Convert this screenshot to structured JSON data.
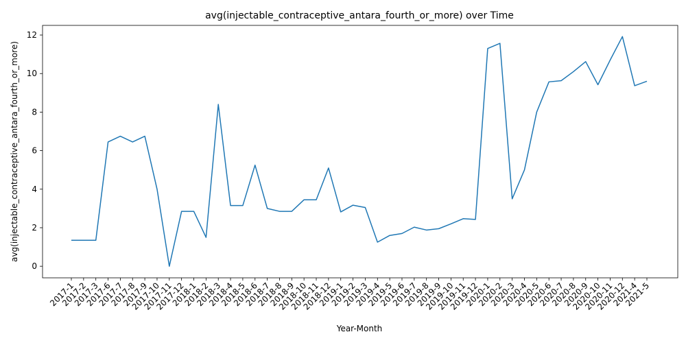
{
  "chart_data": {
    "type": "line",
    "title": "avg(injectable_contraceptive_antara_fourth_or_more) over Time",
    "xlabel": "Year-Month",
    "ylabel": "avg(injectable_contraceptive_antara_fourth_or_more)",
    "ylim": [
      -0.6,
      12.5
    ],
    "yticks": [
      0,
      2,
      4,
      6,
      8,
      10,
      12
    ],
    "grid": false,
    "line_color": "#1f77b4",
    "categories": [
      "2017-1",
      "2017-2",
      "2017-3",
      "2017-6",
      "2017-7",
      "2017-8",
      "2017-9",
      "2017-10",
      "2017-11",
      "2017-12",
      "2018-1",
      "2018-2",
      "2018-3",
      "2018-4",
      "2018-5",
      "2018-6",
      "2018-7",
      "2018-8",
      "2018-9",
      "2018-10",
      "2018-11",
      "2018-12",
      "2019-1",
      "2019-2",
      "2019-3",
      "2019-4",
      "2019-5",
      "2019-6",
      "2019-7",
      "2019-8",
      "2019-9",
      "2019-10",
      "2019-11",
      "2019-12",
      "2020-1",
      "2020-2",
      "2020-3",
      "2020-4",
      "2020-5",
      "2020-6",
      "2020-7",
      "2020-8",
      "2020-9",
      "2020-10",
      "2020-11",
      "2020-12",
      "2021-4",
      "2021-5"
    ],
    "values": [
      1.35,
      1.35,
      1.35,
      6.45,
      6.75,
      6.45,
      6.75,
      4.0,
      0.0,
      2.85,
      2.85,
      1.5,
      8.4,
      3.15,
      3.15,
      5.25,
      3.0,
      2.85,
      2.85,
      3.45,
      3.45,
      5.1,
      2.82,
      3.17,
      3.05,
      1.25,
      1.6,
      1.7,
      2.03,
      1.88,
      1.95,
      2.2,
      2.47,
      2.43,
      11.3,
      11.57,
      3.5,
      5.0,
      8.0,
      9.57,
      9.63,
      10.1,
      10.62,
      9.42,
      10.7,
      11.92,
      9.37,
      9.6
    ]
  }
}
